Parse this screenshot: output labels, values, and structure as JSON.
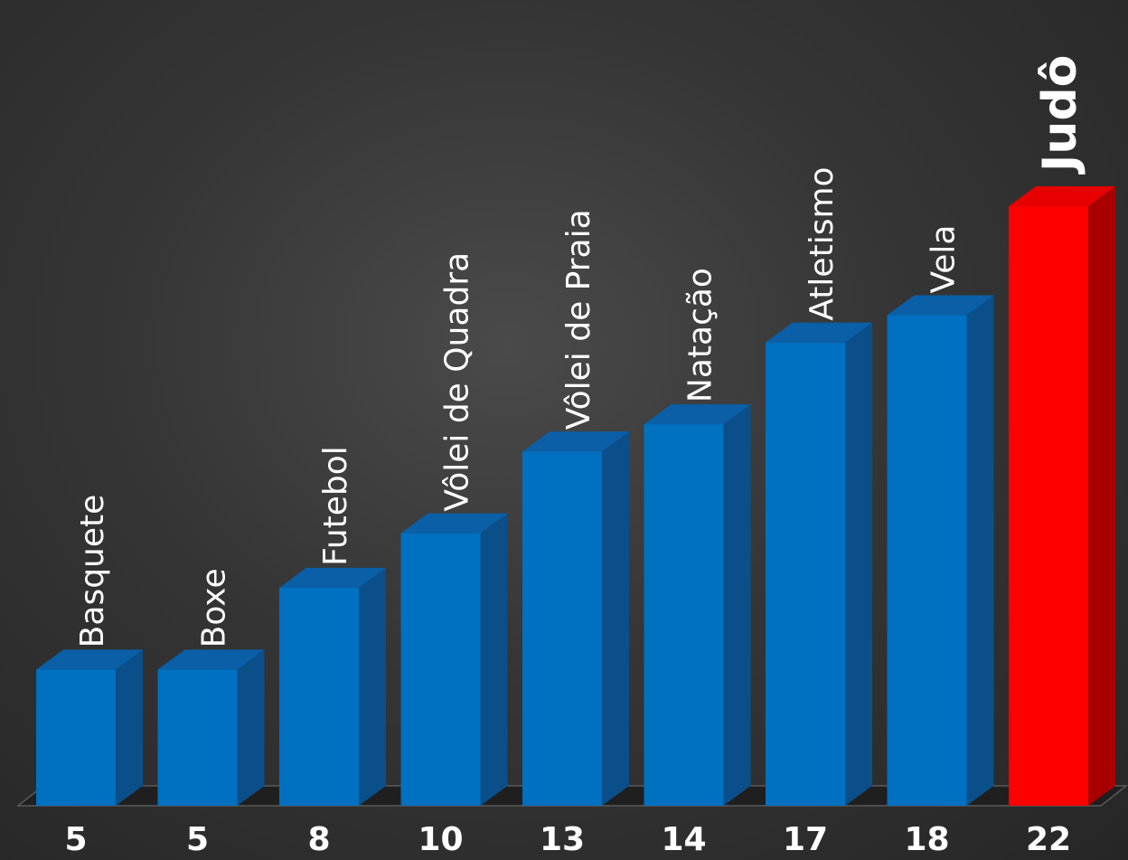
{
  "colors": {
    "bar_front": "#0070c0",
    "bar_top": "#0a5fa6",
    "bar_side": "#0b4f8a",
    "highlight_front": "#ff0000",
    "highlight_top": "#e60000",
    "highlight_side": "#a80000",
    "floor": "#1f1f1f"
  },
  "chart_data": {
    "type": "bar",
    "categories": [
      "Basquete",
      "Boxe",
      "Futebol",
      "Vôlei de Quadra",
      "Vôlei de Praia",
      "Natação",
      "Atletismo",
      "Vela",
      "Judô"
    ],
    "values": [
      5,
      5,
      8,
      10,
      13,
      14,
      17,
      18,
      22
    ],
    "value_labels": [
      "5",
      "5",
      "8",
      "10",
      "13",
      "14",
      "17",
      "18",
      "22"
    ],
    "highlight_category": "Judô",
    "title": "",
    "xlabel": "",
    "ylabel": "",
    "ylim": [
      0,
      22
    ],
    "grid": false,
    "legend": "none",
    "style": "3d-column"
  }
}
